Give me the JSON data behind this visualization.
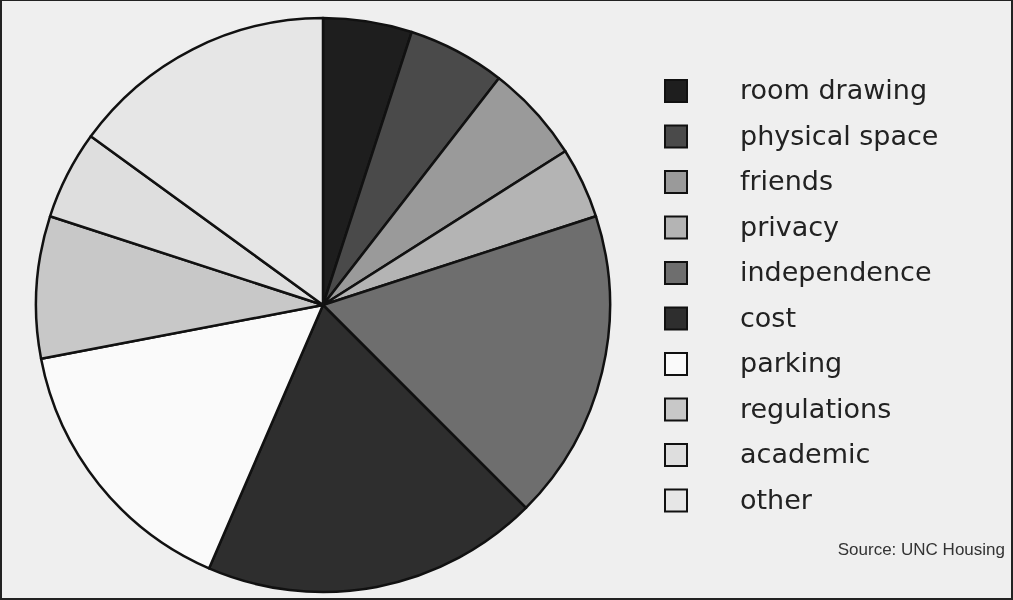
{
  "chart_data": {
    "type": "pie",
    "categories": [
      "room drawing",
      "physical space",
      "friends",
      "privacy",
      "independence",
      "cost",
      "parking",
      "regulations",
      "academic",
      "other"
    ],
    "values": [
      5,
      5.5,
      5.5,
      4,
      17.5,
      19,
      15.5,
      8,
      5,
      15
    ],
    "colors": [
      "#1e1e1e",
      "#4a4a4a",
      "#9a9a9a",
      "#b4b4b4",
      "#6e6e6e",
      "#2e2e2e",
      "#fafafa",
      "#c8c8c8",
      "#dedede",
      "#e6e6e6"
    ],
    "legend": "right",
    "annotations": [
      "Source: UNC Housing"
    ]
  }
}
